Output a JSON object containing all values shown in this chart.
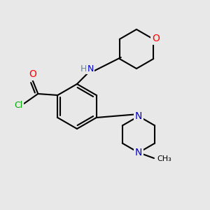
{
  "bg_color": "#e8e8e8",
  "bond_color": "#000000",
  "bond_width": 1.5,
  "atom_colors": {
    "N": "#0000cc",
    "O": "#ff0000",
    "Cl": "#00aa00",
    "H": "#708090"
  },
  "figsize": [
    3.0,
    3.0
  ],
  "dpi": 100,
  "xlim": [
    0,
    300
  ],
  "ylim": [
    0,
    300
  ]
}
